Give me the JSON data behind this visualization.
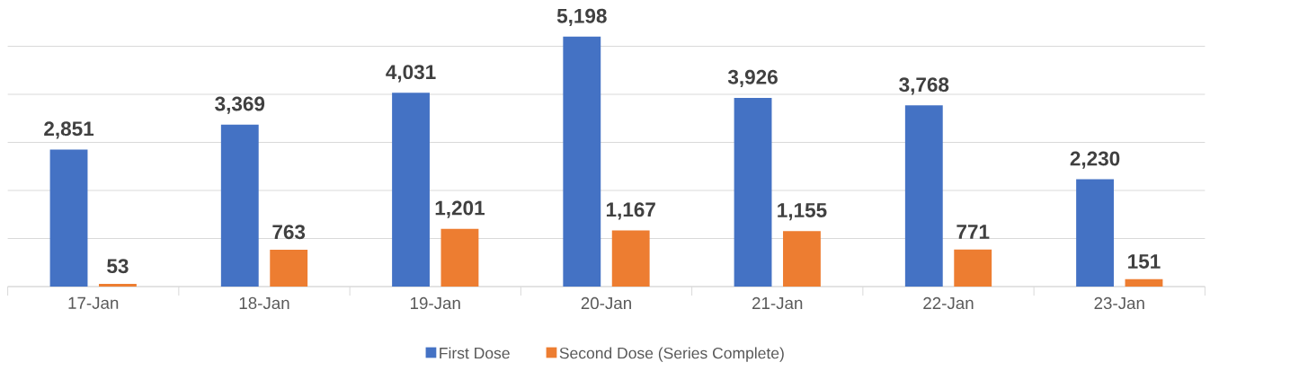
{
  "chart_data": {
    "type": "bar",
    "categories": [
      "17-Jan",
      "18-Jan",
      "19-Jan",
      "20-Jan",
      "21-Jan",
      "22-Jan",
      "23-Jan"
    ],
    "series": [
      {
        "name": "First Dose",
        "color": "#4472c4",
        "values": [
          2851,
          3369,
          4031,
          5198,
          3926,
          3768,
          2230
        ],
        "value_labels": [
          "2,851",
          "3,369",
          "4,031",
          "5,198",
          "3,926",
          "3,768",
          "2,230"
        ]
      },
      {
        "name": "Second Dose (Series Complete)",
        "color": "#ed7d31",
        "values": [
          53,
          763,
          1201,
          1167,
          1155,
          771,
          151
        ],
        "value_labels": [
          "53",
          "763",
          "1,201",
          "1,167",
          "1,155",
          "771",
          "151"
        ]
      }
    ],
    "tick_labels": "x",
    "grid": "y",
    "legend": "bottom"
  }
}
